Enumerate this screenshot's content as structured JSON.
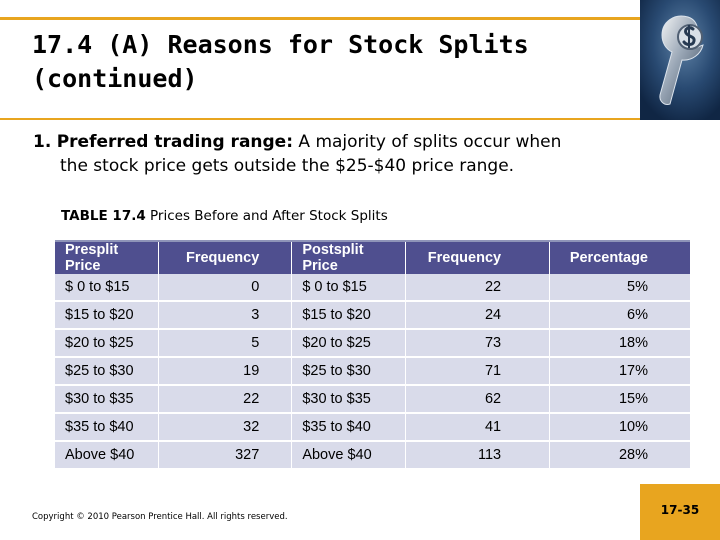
{
  "slide": {
    "title_line1": "17.4 (A)  Reasons for Stock Splits",
    "title_line2": "(continued)",
    "bullet_number": "1.",
    "bullet_lead": "Preferred trading range:",
    "bullet_text_1": "A majority of splits occur when",
    "bullet_text_2": "the stock price gets outside the $25-$40 price range.",
    "copyright": "Copyright © 2010 Pearson Prentice Hall. All rights reserved.",
    "page_number": "17-35"
  },
  "table": {
    "caption_label": "TABLE 17.4",
    "caption_text": "Prices Before and After Stock Splits",
    "headers": [
      "Presplit Price",
      "Frequency",
      "Postsplit Price",
      "Frequency",
      "Percentage"
    ],
    "rows": [
      [
        "$  0 to $15",
        "0",
        "$  0 to $15",
        "22",
        "5%"
      ],
      [
        "$15 to $20",
        "3",
        "$15 to $20",
        "24",
        "6%"
      ],
      [
        "$20 to $25",
        "5",
        "$20 to $25",
        "73",
        "18%"
      ],
      [
        "$25 to $30",
        "19",
        "$25 to $30",
        "71",
        "17%"
      ],
      [
        "$30 to $35",
        "22",
        "$30 to $35",
        "62",
        "15%"
      ],
      [
        "$35 to $40",
        "32",
        "$35 to $40",
        "41",
        "10%"
      ],
      [
        "Above $40",
        "327",
        "Above $40",
        "113",
        "28%"
      ]
    ]
  },
  "colors": {
    "accent": "#e8a51f",
    "table_header": "#4f4f8f",
    "table_body": "#d9dbea"
  }
}
